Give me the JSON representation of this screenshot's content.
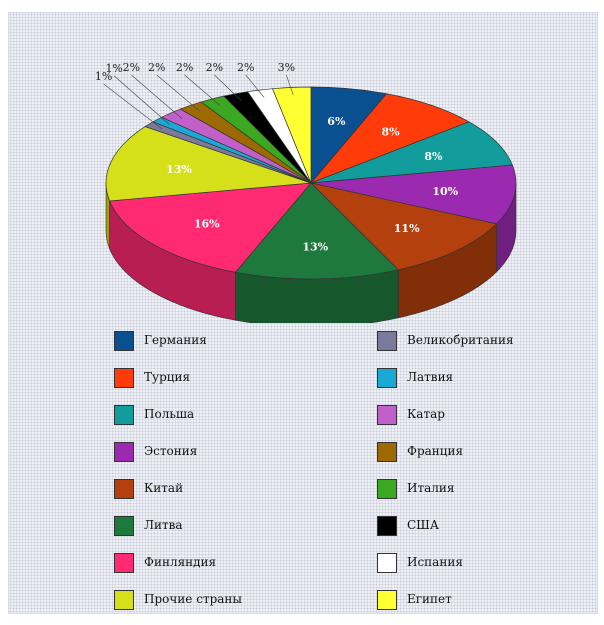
{
  "chart_data": {
    "type": "pie",
    "title": "",
    "slices": [
      {
        "name": "Германия",
        "value": 6,
        "label": "6%",
        "color": "#0a4f8f"
      },
      {
        "name": "Турция",
        "value": 8,
        "label": "8%",
        "color": "#ff3b0a"
      },
      {
        "name": "Польша",
        "value": 8,
        "label": "8%",
        "color": "#139c9c"
      },
      {
        "name": "Эстония",
        "value": 10,
        "label": "10%",
        "color": "#9c2ab0"
      },
      {
        "name": "Китай",
        "value": 11,
        "label": "11%",
        "color": "#b3400d"
      },
      {
        "name": "Литва",
        "value": 13,
        "label": "13%",
        "color": "#1e7a3c"
      },
      {
        "name": "Финляндия",
        "value": 16,
        "label": "16%",
        "color": "#ff2a72"
      },
      {
        "name": "Прочие страны",
        "value": 13,
        "label": "13%",
        "color": "#d6e01a"
      },
      {
        "name": "Великобритания",
        "value": 1,
        "label": "1%",
        "color": "#7a7a9c"
      },
      {
        "name": "Латвия",
        "value": 1,
        "label": "1%",
        "color": "#1aa9d4"
      },
      {
        "name": "Катар",
        "value": 2,
        "label": "2%",
        "color": "#c060c8"
      },
      {
        "name": "Франция",
        "value": 2,
        "label": "2%",
        "color": "#9c6a00"
      },
      {
        "name": "Италия",
        "value": 2,
        "label": "2%",
        "color": "#3aa820"
      },
      {
        "name": "США",
        "value": 2,
        "label": "2%",
        "color": "#000000"
      },
      {
        "name": "Испания",
        "value": 2,
        "label": "2%",
        "color": "#ffffff"
      },
      {
        "name": "Египет",
        "value": 3,
        "label": "3%",
        "color": "#ffff33"
      }
    ],
    "legend_left": [
      "Германия",
      "Турция",
      "Польша",
      "Эстония",
      "Китай",
      "Литва",
      "Финляндия",
      "Прочие страны"
    ],
    "legend_right": [
      "Великобритания",
      "Латвия",
      "Катар",
      "Франция",
      "Италия",
      "США",
      "Испания",
      "Египет"
    ],
    "legend_placement": "bottom"
  }
}
